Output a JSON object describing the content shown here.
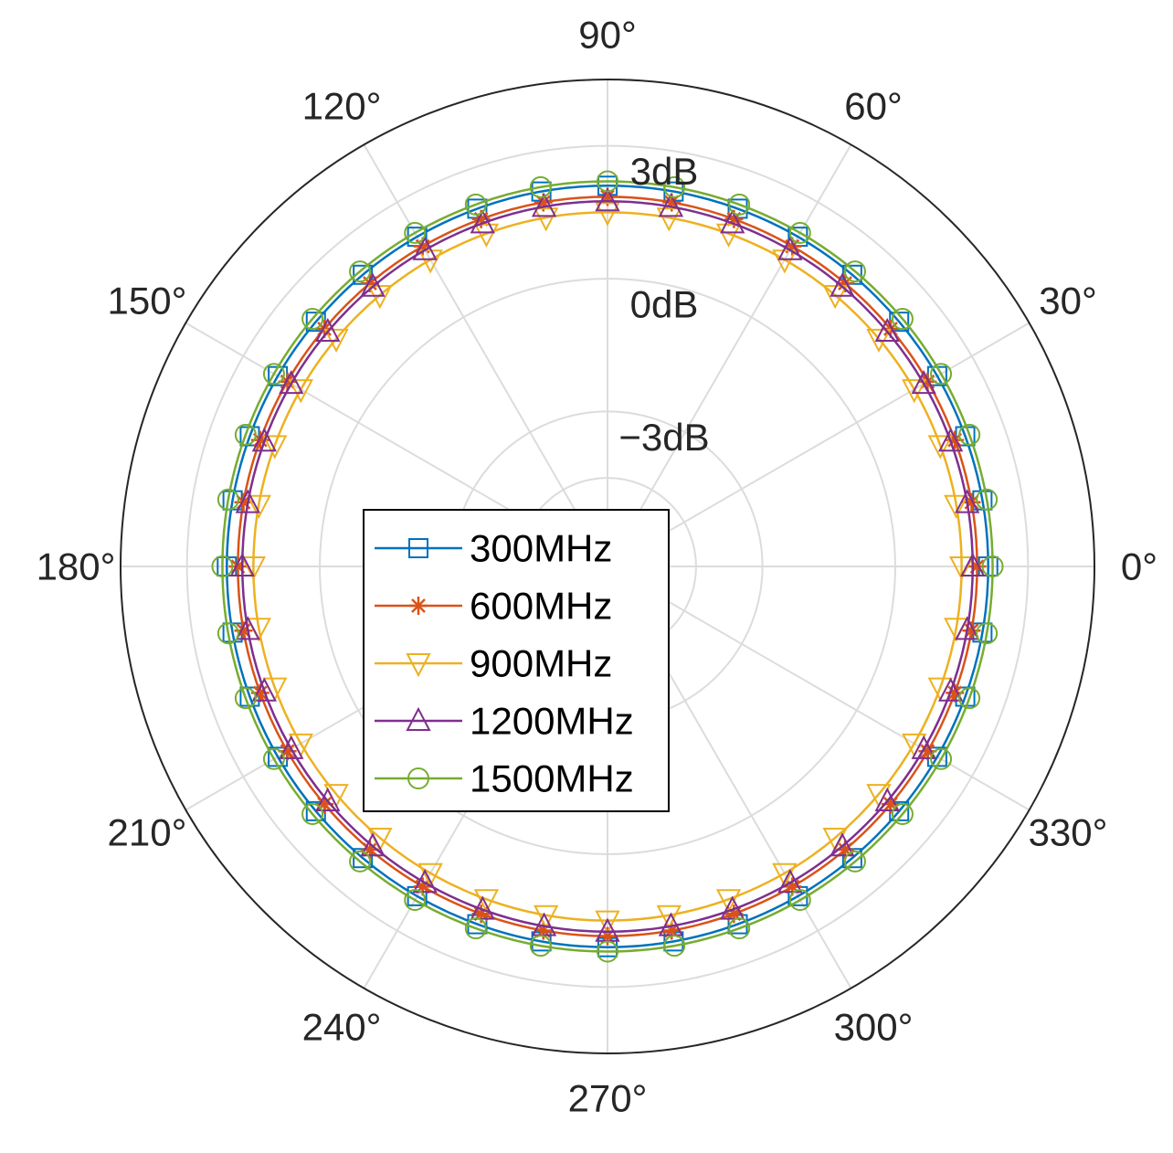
{
  "chart_data": {
    "type": "polar-line",
    "theta_labels": [
      "0°",
      "30°",
      "60°",
      "90°",
      "120°",
      "150°",
      "180°",
      "210°",
      "240°",
      "270°",
      "300°",
      "330°"
    ],
    "r_labels": [
      "−3dB",
      "0dB",
      "3dB"
    ],
    "r_ticks": [
      -3,
      0,
      3
    ],
    "r_lim": [
      -6.5,
      4.5
    ],
    "theta_samples_deg": [
      0,
      10,
      20,
      30,
      40,
      50,
      60,
      70,
      80,
      90,
      100,
      110,
      120,
      130,
      140,
      150,
      160,
      170,
      180,
      190,
      200,
      210,
      220,
      230,
      240,
      250,
      260,
      270,
      280,
      290,
      300,
      310,
      320,
      330,
      340,
      350
    ],
    "series": [
      {
        "name": "300MHz",
        "r_db": 2.1,
        "color": "#0072BD",
        "marker": "square"
      },
      {
        "name": "600MHz",
        "r_db": 1.85,
        "color": "#D95319",
        "marker": "asterisk"
      },
      {
        "name": "900MHz",
        "r_db": 1.5,
        "color": "#EDB120",
        "marker": "triangle-down"
      },
      {
        "name": "1200MHz",
        "r_db": 1.75,
        "color": "#7E2F8E",
        "marker": "triangle-up"
      },
      {
        "name": "1500MHz",
        "r_db": 2.2,
        "color": "#77AC30",
        "marker": "circle"
      }
    ],
    "grid": true,
    "legend_position": "center"
  }
}
